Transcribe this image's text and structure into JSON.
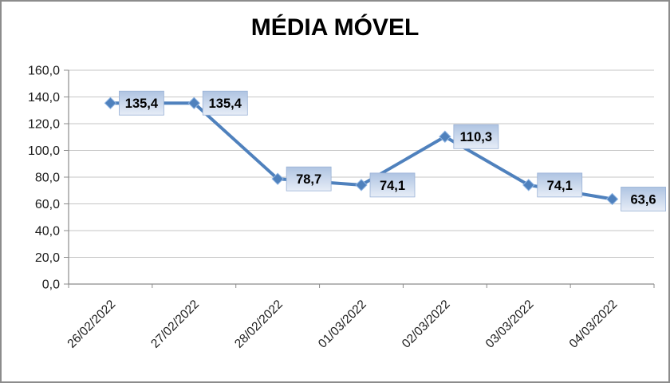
{
  "window": {
    "background": "#ffffff",
    "border_color": "#8c8c8c"
  },
  "chart_data": {
    "type": "line",
    "title": "MÉDIA MÓVEL",
    "categories": [
      "26/02/2022",
      "27/02/2022",
      "28/02/2022",
      "01/03/2022",
      "02/03/2022",
      "03/03/2022",
      "04/03/2022"
    ],
    "values": [
      135.4,
      135.4,
      78.7,
      74.1,
      110.3,
      74.1,
      63.6
    ],
    "data_labels": [
      "135,4",
      "135,4",
      "78,7",
      "74,1",
      "110,3",
      "74,1",
      "63,6"
    ],
    "xlabel": "",
    "ylabel": "",
    "ylim": [
      0,
      160
    ],
    "y_step": 20,
    "y_tick_labels": [
      "0,0",
      "20,0",
      "40,0",
      "60,0",
      "80,0",
      "100,0",
      "120,0",
      "140,0",
      "160,0"
    ],
    "grid": true,
    "legend": "none",
    "style": {
      "line_color": "#4F81BD",
      "marker_shape": "diamond",
      "marker_fill": "#4F81BD",
      "marker_stroke": "#8EB4E3",
      "gridline_color": "#C6C6C6",
      "axis_color": "#8C8C8C",
      "label_bg_top": "#AFC4E2",
      "label_bg_bottom": "#E7EDF7",
      "label_border": "#9AB2D6",
      "label_text_color": "#000000",
      "axis_text_color": "#1a1a1a"
    }
  }
}
